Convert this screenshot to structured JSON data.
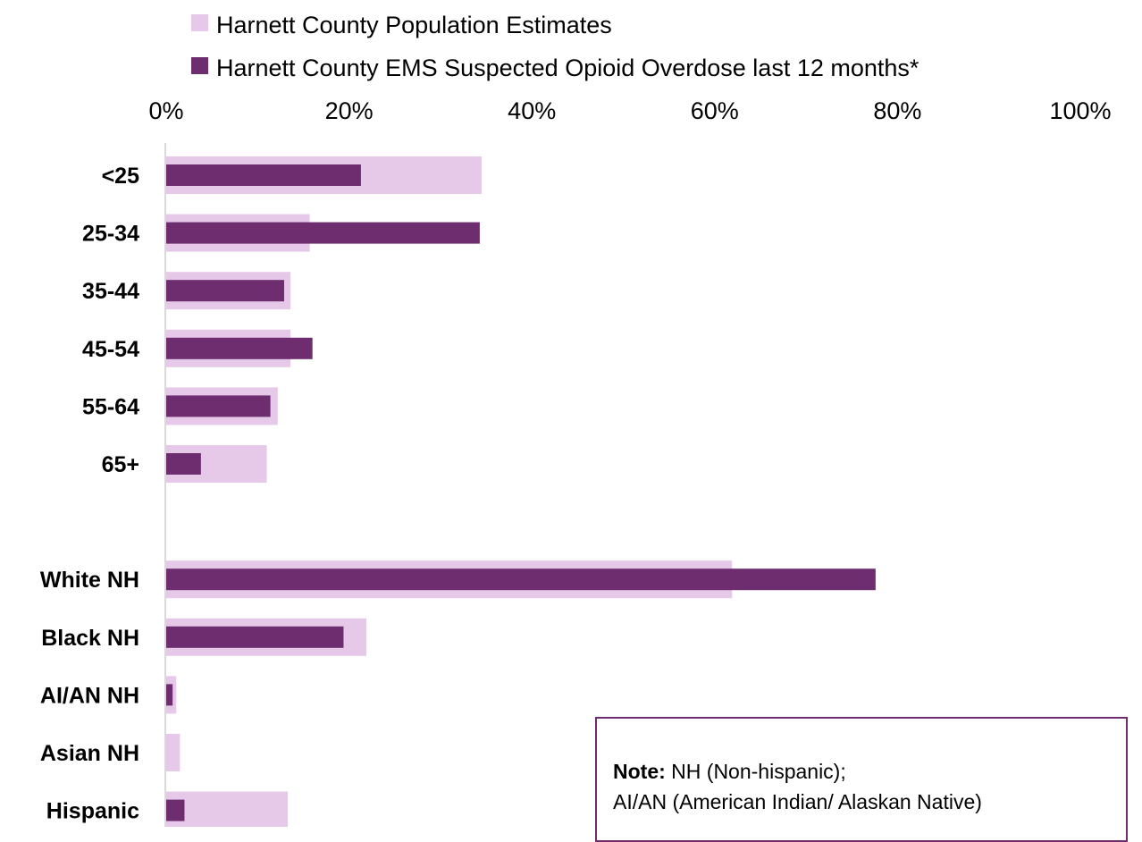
{
  "chart_data": {
    "type": "bar",
    "orientation": "horizontal",
    "title": "",
    "xlabel": "",
    "ylabel": "",
    "xlim": [
      0,
      100
    ],
    "x_ticks": [
      "0%",
      "20%",
      "40%",
      "60%",
      "80%",
      "100%"
    ],
    "legend_position": "top",
    "grid": false,
    "categories": [
      "<25",
      "25-34",
      "35-44",
      "45-54",
      "55-64",
      "65+",
      "",
      "White NH",
      "Black NH",
      "AI/AN NH",
      "Asian NH",
      "Hispanic"
    ],
    "series": [
      {
        "name": "Harnett County Population Estimates",
        "color": "#e6c8e8",
        "values": [
          34.5,
          15.7,
          13.6,
          13.6,
          12.2,
          11.0,
          null,
          61.9,
          21.9,
          1.1,
          1.5,
          13.3
        ]
      },
      {
        "name": "Harnett County EMS Suspected Opioid Overdose last 12 months*",
        "color": "#6d2d6f",
        "values": [
          21.3,
          34.3,
          12.9,
          16.0,
          11.4,
          3.8,
          null,
          77.6,
          19.4,
          0.7,
          0.0,
          2.0
        ]
      }
    ]
  },
  "note": {
    "label": "Note:",
    "line1": " NH (Non-hispanic);",
    "line2": "AI/AN (American Indian/ Alaskan Native)"
  }
}
